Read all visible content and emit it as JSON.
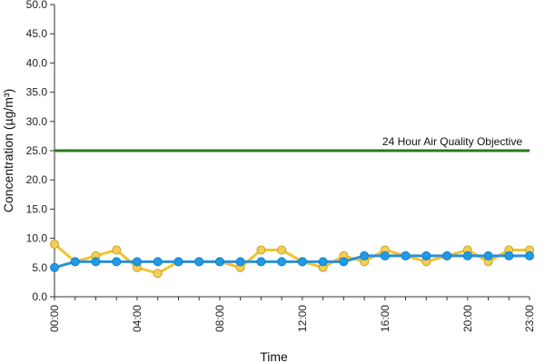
{
  "chart_data": {
    "type": "line",
    "title": "",
    "xlabel": "Time",
    "ylabel": "Concentration (µg/m³)",
    "ylim": [
      0,
      50
    ],
    "y_ticks": [
      "0.0",
      "5.0",
      "10.0",
      "15.0",
      "20.0",
      "25.0",
      "30.0",
      "35.0",
      "40.0",
      "45.0",
      "50.0"
    ],
    "x_tick_labels": [
      "00:00",
      "04:00",
      "08:00",
      "12:00",
      "16:00",
      "20:00",
      "23:00"
    ],
    "x_tick_hours": [
      0,
      4,
      8,
      12,
      16,
      20,
      23
    ],
    "x": [
      "00:00",
      "01:00",
      "02:00",
      "03:00",
      "04:00",
      "05:00",
      "06:00",
      "07:00",
      "08:00",
      "09:00",
      "10:00",
      "11:00",
      "12:00",
      "13:00",
      "14:00",
      "15:00",
      "16:00",
      "17:00",
      "18:00",
      "19:00",
      "20:00",
      "21:00",
      "22:00",
      "23:00"
    ],
    "grid": false,
    "legend": "none",
    "series": [
      {
        "color": "#f0c330",
        "marker_color": "#f2cf56",
        "values": [
          9,
          6,
          7,
          8,
          5,
          4,
          6,
          6,
          6,
          5,
          8,
          8,
          6,
          5,
          7,
          6,
          8,
          7,
          6,
          7,
          8,
          6,
          8,
          8
        ]
      },
      {
        "color": "#2f8fd8",
        "marker_color": "#1e9be8",
        "values": [
          5,
          6,
          6,
          6,
          6,
          6,
          6,
          6,
          6,
          6,
          6,
          6,
          6,
          6,
          6,
          7,
          7,
          7,
          7,
          7,
          7,
          7,
          7,
          7
        ]
      }
    ],
    "reference_line": {
      "label": "24 Hour Air Quality Objective",
      "value": 25,
      "color": "#2a7a1a"
    }
  }
}
